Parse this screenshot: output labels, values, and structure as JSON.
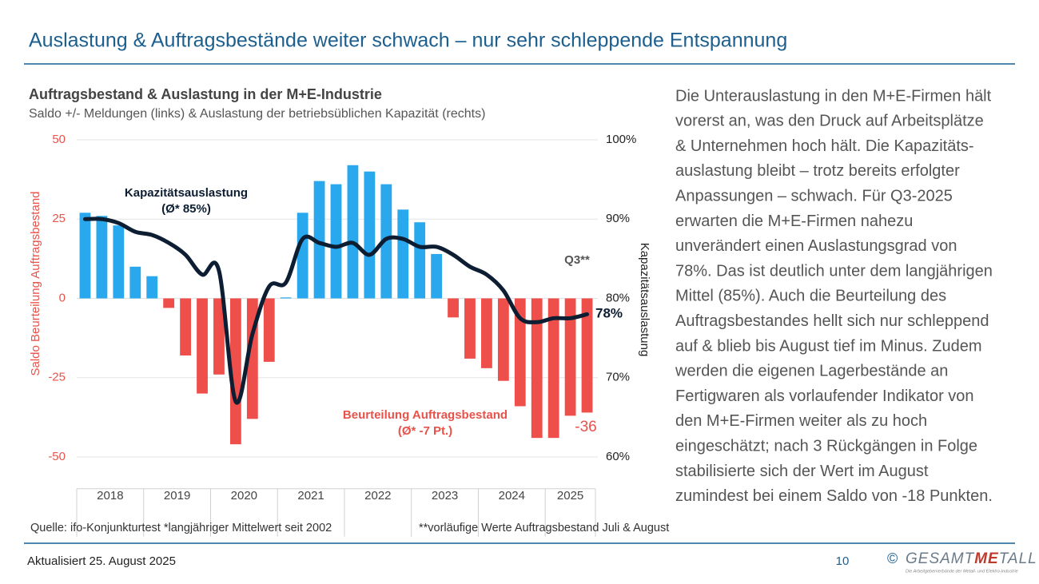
{
  "header": {
    "title": "Auslastung & Auftragsbestände weiter schwach – nur sehr schleppende Entspannung"
  },
  "chart_data": {
    "type": "bar-line",
    "title": "Auftragsbestand & Auslastung in der M+E-Industrie",
    "subtitle": "Saldo +/- Meldungen (links) & Auslastung der betriebsüblichen Kapazität (rechts)",
    "y_label": "Saldo Beurteilung Auftragsbestand",
    "y2_label": "Kapazitätsauslastung",
    "categories": [
      null,
      null,
      null,
      null,
      null,
      null,
      null,
      null,
      null,
      null,
      null,
      null,
      null,
      null,
      null,
      null,
      null,
      null,
      null,
      null,
      null,
      null,
      null,
      null,
      null,
      null,
      null,
      null,
      null,
      null,
      null
    ],
    "year_labels": [
      "2018",
      "2019",
      "2020",
      "2021",
      "2022",
      "2023",
      "2024",
      "2025"
    ],
    "ylim": [
      -60,
      50
    ],
    "yticks": [
      -50,
      -25,
      0,
      25,
      50
    ],
    "y2lim": [
      55,
      100
    ],
    "y2ticks": [
      {
        "value": 60,
        "label": "60%"
      },
      {
        "value": 70,
        "label": "70%"
      },
      {
        "value": 80,
        "label": "80%"
      },
      {
        "value": 90,
        "label": "90%"
      },
      {
        "value": 100,
        "label": "100%"
      }
    ],
    "grid": true,
    "series": [
      {
        "name": "Beurteilung Auftragsbestand",
        "type": "bar",
        "colors": {
          "positive": "#2aa8ee",
          "negative": "#ee4f4a"
        },
        "values": [
          27,
          26,
          23,
          10,
          7,
          -3,
          -18,
          -30,
          -24,
          -46,
          -38,
          -20,
          0.3,
          27,
          37,
          36,
          42,
          40,
          36,
          28,
          24,
          14,
          -6,
          -19,
          -22,
          -26,
          -34,
          -44,
          -44,
          -37,
          -36
        ]
      },
      {
        "name": "Kapazitätsauslastung",
        "type": "line",
        "axis": "y2",
        "color": "#0d1e33",
        "values": [
          90,
          90,
          89.5,
          88.4,
          88,
          87,
          85.5,
          83,
          83.5,
          67,
          75.5,
          81.5,
          82,
          87.5,
          87,
          86.5,
          87,
          85.5,
          87.5,
          87.5,
          86.5,
          86.5,
          85.5,
          84,
          83,
          81,
          77.5,
          77,
          77.5,
          77.5,
          78
        ]
      }
    ],
    "annotations": {
      "line_avg": "(Ø* 85%)",
      "bar_avg": "(Ø* -7 Pt.)",
      "q3": "Q3**",
      "line_last": "78%",
      "bar_last": "-36"
    }
  },
  "text": {
    "lines": [
      "Die Unterauslastung in den M+E-Firmen hält",
      "vorerst an, was den Druck auf Arbeitsplätze",
      "& Unternehmen hoch hält. Die Kapazitäts-",
      "auslastung bleibt – trotz bereits erfolgter",
      "Anpassungen – schwach. Für Q3-2025",
      "erwarten die M+E-Firmen nahezu",
      "unverändert einen Auslastungsgrad von",
      "78%. Das ist deutlich unter dem langjährigen",
      "Mittel (85%). Auch die Beurteilung des",
      "Auftragsbestandes hellt sich nur schleppend",
      "auf & blieb bis August tief im Minus. Zudem",
      "werden die eigenen Lagerbestände an",
      "Fertigwaren als vorlaufender Indikator von",
      "den M+E-Firmen weiter als zu hoch",
      "eingeschätzt; nach 3 Rückgängen in Folge",
      "stabilisierte sich der Wert im August",
      "zumindest bei einem Saldo von -18 Punkten."
    ]
  },
  "source": {
    "main": "Quelle: ifo-Konjunkturtest   *langjähriger Mittelwert seit 2002",
    "note": "**vorläufige Werte Auftragsbestand Juli & August"
  },
  "footer": {
    "date": "Aktualisiert 25. August 2025",
    "page": "10",
    "logo": {
      "symbol": "©",
      "part_a": "GESAMT",
      "part_b": "ME",
      "part_c": "TALL",
      "tagline": "Die Arbeitgeberverbände der Metall- und Elektro-Industrie"
    }
  }
}
